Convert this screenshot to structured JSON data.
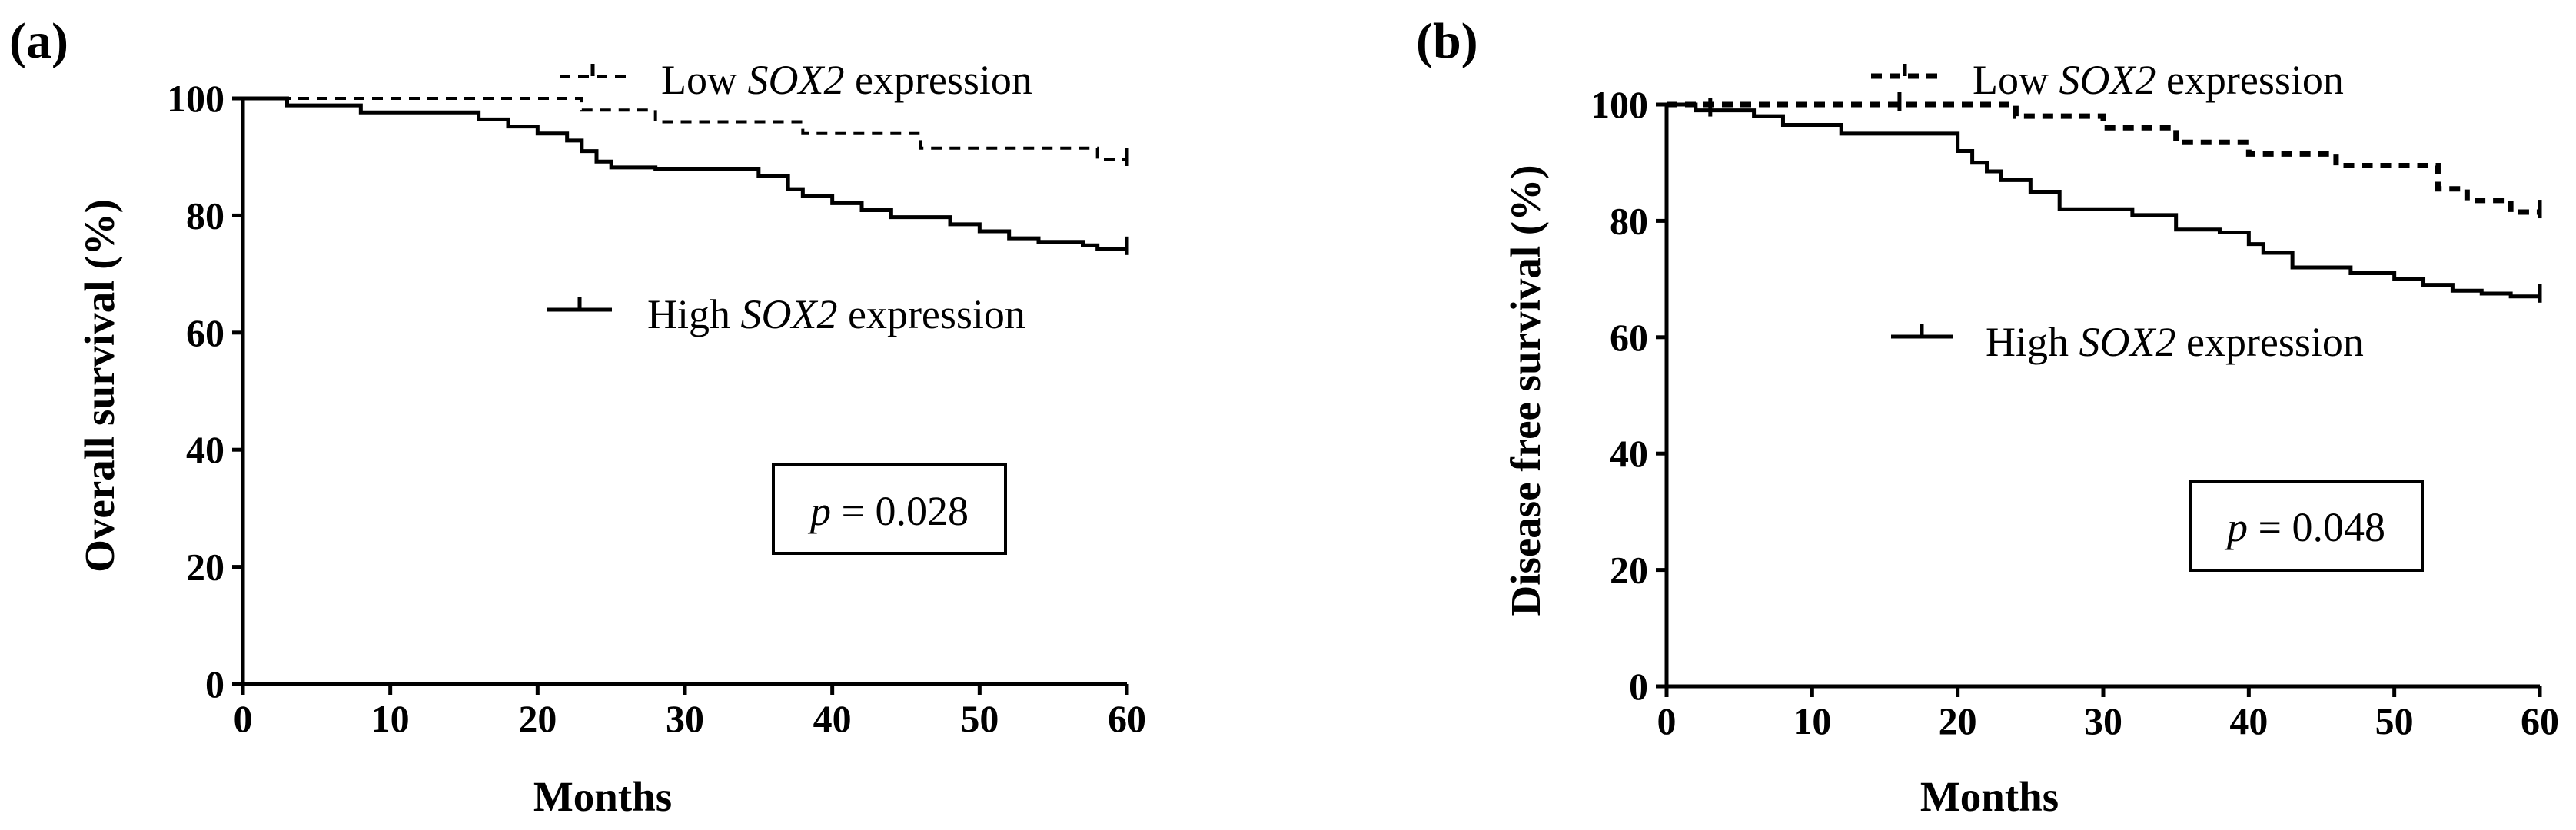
{
  "chart_data": [
    {
      "type": "line",
      "subtype": "kaplan-meier",
      "panel_label": "(a)",
      "xlabel": "Months",
      "ylabel": "Overall survival (%)",
      "xlim": [
        0,
        60
      ],
      "ylim": [
        0,
        100
      ],
      "xticks": [
        "0",
        "10",
        "20",
        "30",
        "40",
        "50",
        "60"
      ],
      "yticks": [
        "0",
        "20",
        "40",
        "60",
        "80",
        "100"
      ],
      "grid": false,
      "legend_placement": "top-right",
      "annotation": {
        "prefix": "p",
        "text": " = 0.028"
      },
      "series": [
        {
          "name": "Low SOX2 expression",
          "legend": {
            "prefix": "Low ",
            "gene": "SOX2",
            "suffix": " expression"
          },
          "style": "dashed",
          "x": [
            0,
            23,
            28,
            38,
            46,
            58,
            60
          ],
          "y": [
            100,
            98,
            96,
            94,
            91.5,
            89.5,
            89.5
          ],
          "censored": [
            {
              "x": 60,
              "y": 89.5
            }
          ]
        },
        {
          "name": "High SOX2 expression",
          "legend": {
            "prefix": "High ",
            "gene": "SOX2",
            "suffix": " expression"
          },
          "style": "solid",
          "x": [
            0,
            3,
            8,
            16,
            18,
            20,
            22,
            23,
            24,
            25,
            28,
            35,
            37,
            38,
            40,
            42,
            44,
            48,
            50,
            52,
            54,
            57,
            58,
            60
          ],
          "y": [
            100,
            98.8,
            97.6,
            96.4,
            95.2,
            94,
            92.8,
            91,
            89.2,
            88.2,
            88,
            86.8,
            84.5,
            83.3,
            82.1,
            80.9,
            79.7,
            78.5,
            77.3,
            76.1,
            75.5,
            74.9,
            74.3,
            74.3
          ],
          "censored": [
            {
              "x": 60,
              "y": 74.3
            }
          ]
        }
      ]
    },
    {
      "type": "line",
      "subtype": "kaplan-meier",
      "panel_label": "(b)",
      "xlabel": "Months",
      "ylabel": "Disease free survival (%)",
      "xlim": [
        0,
        60
      ],
      "ylim": [
        0,
        100
      ],
      "xticks": [
        "0",
        "10",
        "20",
        "30",
        "40",
        "50",
        "60"
      ],
      "yticks": [
        "0",
        "20",
        "40",
        "60",
        "80",
        "100"
      ],
      "grid": false,
      "legend_placement": "top-right",
      "annotation": {
        "prefix": "p",
        "text": " = 0.048"
      },
      "series": [
        {
          "name": "Low SOX2 expression",
          "legend": {
            "prefix": "Low ",
            "gene": "SOX2",
            "suffix": " expression"
          },
          "style": "dashed",
          "x": [
            0,
            24,
            30,
            35,
            40,
            46,
            53,
            55,
            58,
            60
          ],
          "y": [
            100,
            98,
            96,
            93.5,
            91.5,
            89.5,
            85.5,
            83.5,
            81.5,
            81.5
          ],
          "censored": [
            {
              "x": 16,
              "y": 100
            },
            {
              "x": 60,
              "y": 81.5
            }
          ]
        },
        {
          "name": "High SOX2 expression",
          "legend": {
            "prefix": "High ",
            "gene": "SOX2",
            "suffix": " expression"
          },
          "style": "solid",
          "x": [
            0,
            2,
            6,
            8,
            12,
            20,
            21,
            22,
            23,
            25,
            27,
            32,
            35,
            38,
            40,
            41,
            43,
            47,
            50,
            52,
            54,
            56,
            58,
            60
          ],
          "y": [
            100,
            99,
            98,
            96.5,
            95,
            92,
            90,
            88.5,
            87,
            85,
            82,
            81,
            78.5,
            78,
            76,
            74.5,
            72,
            71,
            70,
            69,
            68,
            67.5,
            67,
            67
          ],
          "censored": [
            {
              "x": 3,
              "y": 99
            },
            {
              "x": 60,
              "y": 67
            }
          ]
        }
      ]
    }
  ]
}
